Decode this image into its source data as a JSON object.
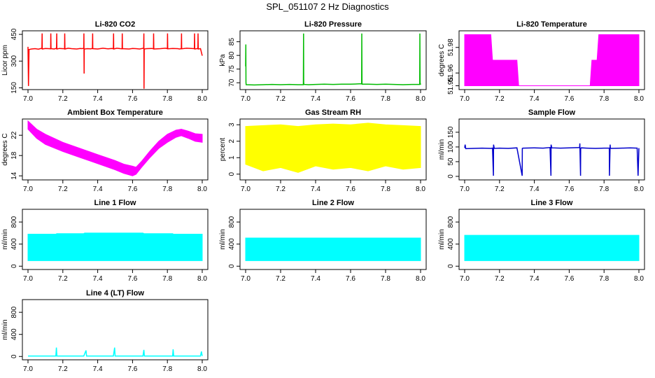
{
  "title": "SPL_051107  2 Hz Diagnostics",
  "chart_data": [
    {
      "type": "line",
      "title": "Li-820 CO2",
      "ylabel": "Licor ppm",
      "color": "#ff0000",
      "xlim": [
        7.0,
        8.0
      ],
      "ylim": [
        140,
        470
      ],
      "xticks": [
        7.0,
        7.2,
        7.4,
        7.6,
        7.8,
        8.0
      ],
      "xtick_labels": [
        "7.0",
        "7.2",
        "7.4",
        "7.6",
        "7.8",
        "8.0"
      ],
      "yticks": [
        150,
        300,
        450
      ],
      "ytick_labels": [
        "150",
        "300",
        "450"
      ],
      "series": [
        {
          "x": [
            7.0,
            7.003,
            7.006,
            7.02,
            7.04,
            7.06,
            7.08,
            7.081,
            7.082,
            7.1,
            7.12,
            7.13,
            7.131,
            7.132,
            7.15,
            7.164,
            7.165,
            7.166,
            7.18,
            7.2,
            7.21,
            7.211,
            7.212,
            7.23,
            7.25,
            7.28,
            7.3,
            7.31,
            7.32,
            7.321,
            7.322,
            7.323,
            7.34,
            7.36,
            7.37,
            7.371,
            7.372,
            7.4,
            7.43,
            7.45,
            7.46,
            7.48,
            7.49,
            7.491,
            7.492,
            7.51,
            7.53,
            7.54,
            7.541,
            7.542,
            7.58,
            7.6,
            7.62,
            7.64,
            7.664,
            7.665,
            7.666,
            7.667,
            7.68,
            7.71,
            7.72,
            7.721,
            7.722,
            7.76,
            7.79,
            7.8,
            7.801,
            7.802,
            7.83,
            7.86,
            7.87,
            7.88,
            7.881,
            7.882,
            7.91,
            7.955,
            7.956,
            7.957,
            7.975,
            7.976,
            7.977,
            7.99,
            8.0
          ],
          "y": [
            380,
            160,
            365,
            368,
            370,
            367,
            372,
            455,
            368,
            371,
            370,
            369,
            455,
            370,
            368,
            372,
            455,
            368,
            371,
            370,
            369,
            455,
            368,
            372,
            370,
            368,
            371,
            370,
            372,
            455,
            230,
            368,
            370,
            369,
            371,
            455,
            370,
            368,
            372,
            370,
            369,
            371,
            370,
            455,
            368,
            372,
            370,
            369,
            455,
            370,
            368,
            371,
            370,
            368,
            372,
            455,
            145,
            368,
            370,
            371,
            369,
            455,
            368,
            370,
            372,
            370,
            455,
            369,
            371,
            370,
            368,
            370,
            455,
            369,
            372,
            370,
            455,
            368,
            371,
            455,
            368,
            370,
            330
          ]
        }
      ]
    },
    {
      "type": "line",
      "title": "Li-820 Pressure",
      "ylabel": "kPa",
      "color": "#00bb00",
      "xlim": [
        7.0,
        8.0
      ],
      "ylim": [
        67.5,
        89
      ],
      "xticks": [
        7.0,
        7.2,
        7.4,
        7.6,
        7.8,
        8.0
      ],
      "xtick_labels": [
        "7.0",
        "7.2",
        "7.4",
        "7.6",
        "7.8",
        "8.0"
      ],
      "yticks": [
        70,
        75,
        80,
        85
      ],
      "ytick_labels": [
        "70",
        "75",
        "80",
        "85"
      ],
      "series": [
        {
          "x": [
            7.0,
            7.001,
            7.002,
            7.003,
            7.05,
            7.1,
            7.15,
            7.2,
            7.25,
            7.3,
            7.33,
            7.331,
            7.332,
            7.333,
            7.36,
            7.4,
            7.45,
            7.5,
            7.55,
            7.6,
            7.65,
            7.663,
            7.664,
            7.665,
            7.666,
            7.7,
            7.75,
            7.8,
            7.85,
            7.9,
            7.95,
            7.995,
            7.996,
            7.997,
            8.0
          ],
          "y": [
            76,
            84,
            70,
            69.3,
            69.2,
            69.3,
            69.4,
            69.3,
            69.4,
            69.3,
            69.3,
            88,
            70,
            69.4,
            69.3,
            69.4,
            69.5,
            69.4,
            69.5,
            69.5,
            69.6,
            69.6,
            88,
            70,
            69.5,
            69.5,
            69.4,
            69.5,
            69.4,
            69.3,
            69.4,
            69.4,
            88,
            70,
            69.3
          ]
        }
      ]
    },
    {
      "type": "area",
      "title": "Li-820 Temperature",
      "ylabel": "degrees C",
      "color": "#ff00ff",
      "xlim": [
        7.0,
        8.0
      ],
      "ylim": [
        51.947,
        51.993
      ],
      "xticks": [
        7.0,
        7.2,
        7.4,
        7.6,
        7.8,
        8.0
      ],
      "xtick_labels": [
        "7.0",
        "7.2",
        "7.4",
        "7.6",
        "7.8",
        "8.0"
      ],
      "yticks": [
        51.95,
        51.96,
        51.98
      ],
      "ytick_labels": [
        "51.95",
        "51.96",
        "51.98"
      ],
      "series": [
        {
          "x": [
            7.0,
            7.02,
            7.03,
            7.15,
            7.16,
            7.3,
            7.31,
            7.72,
            7.73,
            7.76,
            7.77,
            8.0
          ],
          "y_low": [
            51.95,
            51.95,
            51.95,
            51.95,
            51.95,
            51.95,
            51.95,
            51.95,
            51.95,
            51.95,
            51.95,
            51.95
          ],
          "y_high": [
            51.99,
            51.99,
            51.99,
            51.99,
            51.97,
            51.97,
            51.95,
            51.95,
            51.97,
            51.97,
            51.99,
            51.99
          ]
        }
      ]
    },
    {
      "type": "area",
      "title": "Ambient Box Temperature",
      "ylabel": "degrees C",
      "color": "#ff00ff",
      "xlim": [
        7.0,
        8.0
      ],
      "ylim": [
        13.2,
        25.2
      ],
      "xticks": [
        7.0,
        7.2,
        7.4,
        7.6,
        7.8,
        8.0
      ],
      "xtick_labels": [
        "7.0",
        "7.2",
        "7.4",
        "7.6",
        "7.8",
        "8.0"
      ],
      "yticks": [
        14,
        18,
        22
      ],
      "ytick_labels": [
        "14",
        "18",
        "22"
      ],
      "series": [
        {
          "x": [
            7.0,
            7.05,
            7.1,
            7.2,
            7.3,
            7.4,
            7.5,
            7.55,
            7.6,
            7.62,
            7.65,
            7.7,
            7.75,
            7.8,
            7.85,
            7.88,
            7.92,
            7.96,
            8.0
          ],
          "y_low": [
            23.2,
            21.4,
            20.2,
            18.8,
            17.6,
            16.4,
            15.2,
            14.5,
            14.0,
            14.3,
            15.6,
            17.6,
            19.4,
            20.6,
            21.6,
            21.9,
            21.4,
            20.8,
            20.6
          ],
          "y_high": [
            24.8,
            23.2,
            22.2,
            20.6,
            19.4,
            18.2,
            17.0,
            16.3,
            15.9,
            15.7,
            16.8,
            18.9,
            20.8,
            22.2,
            23.0,
            23.2,
            22.8,
            22.3,
            22.2
          ]
        }
      ]
    },
    {
      "type": "area",
      "title": "Gas Stream RH",
      "ylabel": "percent",
      "color": "#ffff00",
      "xlim": [
        7.0,
        8.0
      ],
      "ylim": [
        -0.35,
        3.35
      ],
      "xticks": [
        7.0,
        7.2,
        7.4,
        7.6,
        7.8,
        8.0
      ],
      "xtick_labels": [
        "7.0",
        "7.2",
        "7.4",
        "7.6",
        "7.8",
        "8.0"
      ],
      "yticks": [
        0,
        1,
        2,
        3
      ],
      "ytick_labels": [
        "0",
        "1",
        "2",
        "3"
      ],
      "series": [
        {
          "x": [
            7.0,
            7.1,
            7.2,
            7.3,
            7.4,
            7.5,
            7.6,
            7.7,
            7.8,
            7.9,
            8.0
          ],
          "y_low": [
            0.6,
            0.2,
            0.4,
            0.1,
            0.5,
            0.3,
            0.4,
            0.2,
            0.5,
            0.3,
            0.4
          ],
          "y_high": [
            2.9,
            2.95,
            3.0,
            2.9,
            3.0,
            3.05,
            3.0,
            3.1,
            3.0,
            2.95,
            2.9
          ]
        }
      ]
    },
    {
      "type": "line",
      "title": "Sample Flow",
      "ylabel": "ml/min",
      "color": "#0000cc",
      "xlim": [
        7.0,
        8.0
      ],
      "ylim": [
        -12,
        195
      ],
      "xticks": [
        7.0,
        7.2,
        7.4,
        7.6,
        7.8,
        8.0
      ],
      "xtick_labels": [
        "7.0",
        "7.2",
        "7.4",
        "7.6",
        "7.8",
        "8.0"
      ],
      "yticks": [
        0,
        50,
        100,
        150
      ],
      "ytick_labels": [
        "0",
        "50",
        "100",
        "150"
      ],
      "series": [
        {
          "x": [
            7.0,
            7.003,
            7.006,
            7.05,
            7.1,
            7.15,
            7.16,
            7.165,
            7.166,
            7.17,
            7.2,
            7.25,
            7.3,
            7.33,
            7.331,
            7.335,
            7.4,
            7.45,
            7.49,
            7.495,
            7.496,
            7.5,
            7.55,
            7.6,
            7.66,
            7.661,
            7.665,
            7.666,
            7.67,
            7.7,
            7.75,
            7.8,
            7.83,
            7.831,
            7.835,
            7.836,
            7.84,
            7.9,
            7.95,
            7.99,
            7.995,
            8.0
          ],
          "y": [
            97,
            108,
            94,
            95,
            96,
            95,
            96,
            2,
            108,
            95,
            96,
            95,
            97,
            2,
            95,
            96,
            97,
            96,
            98,
            2,
            108,
            97,
            96,
            97,
            98,
            112,
            2,
            95,
            97,
            96,
            95,
            96,
            96,
            2,
            108,
            96,
            95,
            96,
            97,
            96,
            2,
            96
          ]
        }
      ]
    },
    {
      "type": "area",
      "title": "Line 1 Flow",
      "ylabel": "ml/min",
      "color": "#00ffff",
      "xlim": [
        7.0,
        8.0
      ],
      "ylim": [
        -60,
        1030
      ],
      "xticks": [
        7.0,
        7.2,
        7.4,
        7.6,
        7.8,
        8.0
      ],
      "xtick_labels": [
        "7.0",
        "7.2",
        "7.4",
        "7.6",
        "7.8",
        "8.0"
      ],
      "yticks": [
        0,
        400,
        800
      ],
      "ytick_labels": [
        "0",
        "400",
        "800"
      ],
      "series": [
        {
          "x": [
            7.0,
            7.16,
            7.165,
            7.32,
            7.325,
            7.49,
            7.495,
            7.66,
            7.665,
            7.83,
            7.835,
            8.0
          ],
          "y_low": [
            100,
            100,
            100,
            100,
            100,
            100,
            100,
            100,
            100,
            100,
            100,
            100
          ],
          "y_high": [
            580,
            580,
            590,
            590,
            600,
            600,
            600,
            600,
            590,
            590,
            580,
            580
          ]
        }
      ]
    },
    {
      "type": "area",
      "title": "Line 2 Flow",
      "ylabel": "ml/min",
      "color": "#00ffff",
      "xlim": [
        7.0,
        8.0
      ],
      "ylim": [
        -60,
        1030
      ],
      "xticks": [
        7.0,
        7.2,
        7.4,
        7.6,
        7.8,
        8.0
      ],
      "xtick_labels": [
        "7.0",
        "7.2",
        "7.4",
        "7.6",
        "7.8",
        "8.0"
      ],
      "yticks": [
        0,
        400,
        800
      ],
      "ytick_labels": [
        "0",
        "400",
        "800"
      ],
      "series": [
        {
          "x": [
            7.0,
            8.0
          ],
          "y_low": [
            100,
            100
          ],
          "y_high": [
            510,
            510
          ]
        }
      ]
    },
    {
      "type": "area",
      "title": "Line 3 Flow",
      "ylabel": "ml/min",
      "color": "#00ffff",
      "xlim": [
        7.0,
        8.0
      ],
      "ylim": [
        -60,
        1030
      ],
      "xticks": [
        7.0,
        7.2,
        7.4,
        7.6,
        7.8,
        8.0
      ],
      "xtick_labels": [
        "7.0",
        "7.2",
        "7.4",
        "7.6",
        "7.8",
        "8.0"
      ],
      "yticks": [
        0,
        400,
        800
      ],
      "ytick_labels": [
        "0",
        "400",
        "800"
      ],
      "series": [
        {
          "x": [
            7.0,
            8.0
          ],
          "y_low": [
            100,
            100
          ],
          "y_high": [
            560,
            560
          ]
        }
      ]
    },
    {
      "type": "line",
      "title": "Line 4 (LT) Flow",
      "ylabel": "ml/min",
      "color": "#00ffff",
      "xlim": [
        7.0,
        8.0
      ],
      "ylim": [
        -60,
        1030
      ],
      "xticks": [
        7.0,
        7.2,
        7.4,
        7.6,
        7.8,
        8.0
      ],
      "xtick_labels": [
        "7.0",
        "7.2",
        "7.4",
        "7.6",
        "7.8",
        "8.0"
      ],
      "yticks": [
        0,
        400,
        800
      ],
      "ytick_labels": [
        "0",
        "400",
        "800"
      ],
      "series": [
        {
          "x": [
            7.0,
            7.16,
            7.163,
            7.166,
            7.32,
            7.333,
            7.336,
            7.49,
            7.497,
            7.5,
            7.66,
            7.665,
            7.668,
            7.83,
            7.833,
            7.836,
            7.99,
            7.995,
            8.0
          ],
          "y": [
            8,
            8,
            160,
            8,
            8,
            110,
            8,
            8,
            160,
            8,
            8,
            120,
            8,
            8,
            130,
            8,
            8,
            90,
            8
          ]
        }
      ]
    }
  ]
}
